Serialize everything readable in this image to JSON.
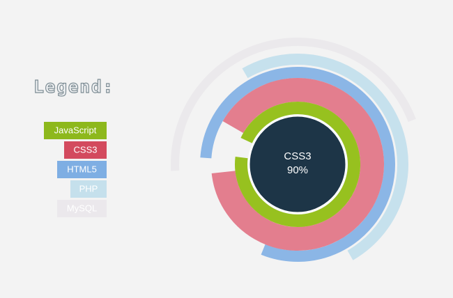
{
  "chart_data": {
    "type": "radial-bar",
    "title": "Legend:",
    "categories": [
      "JavaScript",
      "CSS3",
      "HTML5",
      "PHP",
      "MySQL"
    ],
    "values": [
      95,
      90,
      80,
      50,
      45
    ],
    "colors": [
      "#97c11f",
      "#e27788",
      "#8bb6e6",
      "#c6e1ed",
      "#ebe9ec"
    ],
    "legend_colors": [
      "#8db81c",
      "#d34a5e",
      "#7eaee3",
      "#c5e0ec",
      "#ebe8ec"
    ],
    "center_label": "CSS3",
    "center_value_label": "90%"
  }
}
